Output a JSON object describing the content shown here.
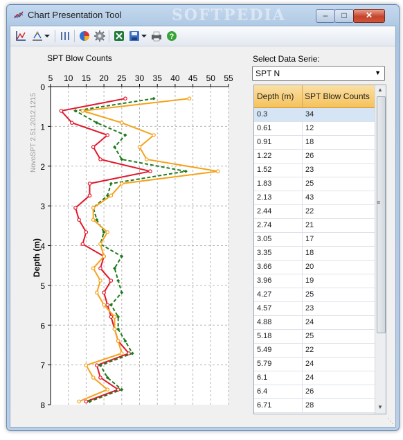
{
  "window": {
    "title": "Chart Presentation Tool",
    "watermark": "SOFTPEDIA",
    "minimize_glyph": "–",
    "maximize_glyph": "□",
    "close_glyph": "✕"
  },
  "toolbar": {
    "icons": [
      "chart-axes-icon",
      "scale-icon",
      "dropdown-arrow-icon",
      "columns-icon",
      "pie-chart-icon",
      "gear-icon",
      "excel-icon",
      "save-icon",
      "dropdown-arrow-icon",
      "print-icon",
      "help-icon"
    ]
  },
  "side_label": "NovoSPT 2.51.2012.1215",
  "select": {
    "label": "Select Data Serie:",
    "value": "SPT N"
  },
  "table": {
    "headers": [
      "Depth (m)",
      "SPT Blow Counts"
    ],
    "rows": [
      [
        "0.3",
        "34"
      ],
      [
        "0.61",
        "12"
      ],
      [
        "0.91",
        "18"
      ],
      [
        "1.22",
        "26"
      ],
      [
        "1.52",
        "23"
      ],
      [
        "1.83",
        "25"
      ],
      [
        "2.13",
        "43"
      ],
      [
        "2.44",
        "22"
      ],
      [
        "2.74",
        "21"
      ],
      [
        "3.05",
        "17"
      ],
      [
        "3.35",
        "18"
      ],
      [
        "3.66",
        "20"
      ],
      [
        "3.96",
        "19"
      ],
      [
        "4.27",
        "25"
      ],
      [
        "4.57",
        "23"
      ],
      [
        "4.88",
        "24"
      ],
      [
        "5.18",
        "25"
      ],
      [
        "5.49",
        "22"
      ],
      [
        "5.79",
        "24"
      ],
      [
        "6.1",
        "24"
      ],
      [
        "6.4",
        "26"
      ],
      [
        "6.71",
        "28"
      ]
    ]
  },
  "chart_data": {
    "type": "line",
    "title": "SPT Blow Counts",
    "xlabel": "SPT Blow Counts",
    "ylabel": "Depth (m)",
    "xlim": [
      5,
      55
    ],
    "ylim": [
      0,
      8
    ],
    "xticks": [
      "5",
      "10",
      "15",
      "20",
      "25",
      "30",
      "35",
      "40",
      "45",
      "50",
      "55"
    ],
    "yticks": [
      "0",
      "1",
      "2",
      "3",
      "4",
      "5",
      "6",
      "7",
      "8"
    ],
    "y_inverted": true,
    "x_axis_position": "top",
    "grid": true,
    "series": [
      {
        "color": "#e0182a",
        "style": "solid",
        "marker": "circle",
        "points": [
          [
            26,
            0.3
          ],
          [
            8,
            0.61
          ],
          [
            11,
            0.91
          ],
          [
            21,
            1.22
          ],
          [
            17,
            1.52
          ],
          [
            19,
            1.83
          ],
          [
            33,
            2.13
          ],
          [
            16,
            2.44
          ],
          [
            16,
            2.74
          ],
          [
            12,
            3.05
          ],
          [
            13,
            3.35
          ],
          [
            15,
            3.66
          ],
          [
            14,
            3.96
          ],
          [
            20,
            4.27
          ],
          [
            19,
            4.57
          ],
          [
            22,
            4.88
          ],
          [
            20,
            5.18
          ],
          [
            21,
            5.49
          ],
          [
            22,
            5.79
          ],
          [
            23,
            6.1
          ],
          [
            24,
            6.4
          ],
          [
            27,
            6.71
          ],
          [
            18,
            7.01
          ],
          [
            19,
            7.32
          ],
          [
            24,
            7.62
          ],
          [
            15,
            7.92
          ]
        ]
      },
      {
        "color": "#1e7a1e",
        "style": "dashed",
        "marker": "diamond",
        "points": [
          [
            34,
            0.3
          ],
          [
            12,
            0.61
          ],
          [
            18,
            0.91
          ],
          [
            26,
            1.22
          ],
          [
            23,
            1.52
          ],
          [
            25,
            1.83
          ],
          [
            43,
            2.13
          ],
          [
            22,
            2.44
          ],
          [
            21,
            2.74
          ],
          [
            17,
            3.05
          ],
          [
            18,
            3.35
          ],
          [
            20,
            3.66
          ],
          [
            19,
            3.96
          ],
          [
            25,
            4.27
          ],
          [
            23,
            4.57
          ],
          [
            24,
            4.88
          ],
          [
            25,
            5.18
          ],
          [
            22,
            5.49
          ],
          [
            24,
            5.79
          ],
          [
            24,
            6.1
          ],
          [
            26,
            6.4
          ],
          [
            28,
            6.71
          ],
          [
            19,
            7.01
          ],
          [
            21,
            7.32
          ],
          [
            25,
            7.62
          ],
          [
            16,
            7.92
          ]
        ]
      },
      {
        "color": "#f5a21a",
        "style": "solid",
        "marker": "circle",
        "points": [
          [
            44,
            0.3
          ],
          [
            14,
            0.61
          ],
          [
            25,
            0.91
          ],
          [
            34,
            1.22
          ],
          [
            30,
            1.52
          ],
          [
            32,
            1.83
          ],
          [
            52,
            2.13
          ],
          [
            25,
            2.44
          ],
          [
            22,
            2.74
          ],
          [
            17,
            3.05
          ],
          [
            17,
            3.35
          ],
          [
            21,
            3.66
          ],
          [
            19,
            3.96
          ],
          [
            20,
            4.27
          ],
          [
            17,
            4.57
          ],
          [
            19,
            4.88
          ],
          [
            18,
            5.18
          ],
          [
            20,
            5.49
          ],
          [
            23,
            5.79
          ],
          [
            23,
            6.1
          ],
          [
            24,
            6.4
          ],
          [
            25,
            6.71
          ],
          [
            15,
            7.01
          ],
          [
            17,
            7.32
          ],
          [
            21,
            7.62
          ],
          [
            13,
            7.92
          ]
        ]
      }
    ]
  }
}
